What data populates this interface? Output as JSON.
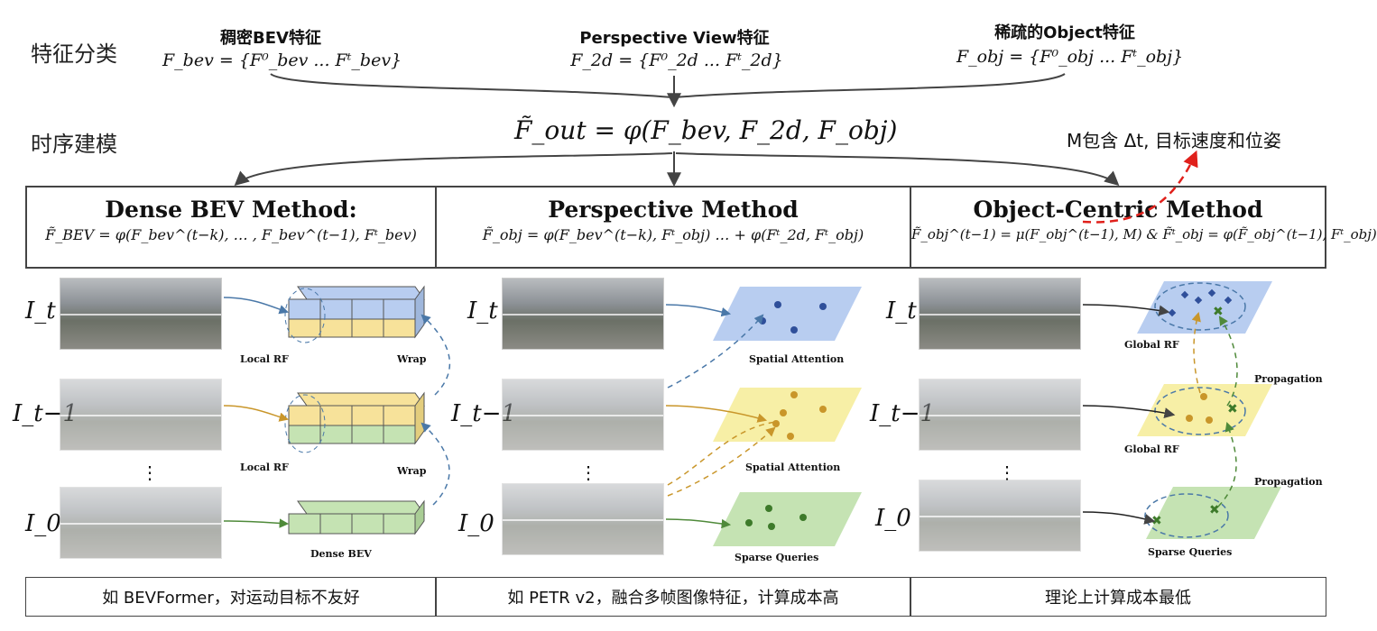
{
  "sections": {
    "feature": "特征分类",
    "temporal": "时序建模"
  },
  "features": [
    {
      "title": "稠密BEV特征",
      "formula": "F_bev = {F⁰_bev ... Fᵗ_bev}"
    },
    {
      "title": "Perspective View特征",
      "formula": "F_2d = {F⁰_2d ... Fᵗ_2d}"
    },
    {
      "title": "稀疏的Object特征",
      "formula": "F_obj = {F⁰_obj ... Fᵗ_obj}"
    }
  ],
  "out_formula": "F̃_out = φ(F_bev, F_2d, F_obj)",
  "m_note": "M包含 Δt, 目标速度和位姿",
  "methods": [
    {
      "title": "Dense BEV Method:",
      "formula": "F̃_BEV = φ(F_bev^(t−k), … , F_bev^(t−1), Fᵗ_bev)"
    },
    {
      "title": "Perspective Method",
      "formula": "F̃_obj = φ(F_bev^(t−k), Fᵗ_obj) … + φ(Fᵗ_2d, Fᵗ_obj)"
    },
    {
      "title": "Object-Centric Method",
      "formula": "F̃_obj^(t−1) = μ(F_obj^(t−1), M) & F̃ᵗ_obj = φ(F̃_obj^(t−1), Fᵗ_obj)"
    }
  ],
  "frames": {
    "t": "I_t",
    "t1": "I_t−1",
    "zero": "I_0",
    "dots": "⋮"
  },
  "col1_labels": {
    "local_rf_1": "Local RF",
    "wrap_1": "Wrap",
    "local_rf_2": "Local RF",
    "wrap_2": "Wrap",
    "dense_bev": "Dense BEV"
  },
  "col2_labels": {
    "spatial_1": "Spatial Attention",
    "spatial_2": "Spatial Attention",
    "sparse": "Sparse Queries"
  },
  "col3_labels": {
    "global_rf_1": "Global RF",
    "propagation_1": "Propagation",
    "global_rf_2": "Global RF",
    "propagation_2": "Propagation",
    "sparse": "Sparse Queries"
  },
  "bottom": [
    "如 BEVFormer，对运动目标不友好",
    "如 PETR v2，融合多帧图像特征，计算成本高",
    "理论上计算成本最低"
  ],
  "colors": {
    "blue": "#b8cdf0",
    "yellow": "#f7efa6",
    "green": "#c5e3b3",
    "dot": "#2f4f9a",
    "gold": "#c9962a",
    "green_dot": "#3d7a2a",
    "red_dash": "#e0201b"
  }
}
